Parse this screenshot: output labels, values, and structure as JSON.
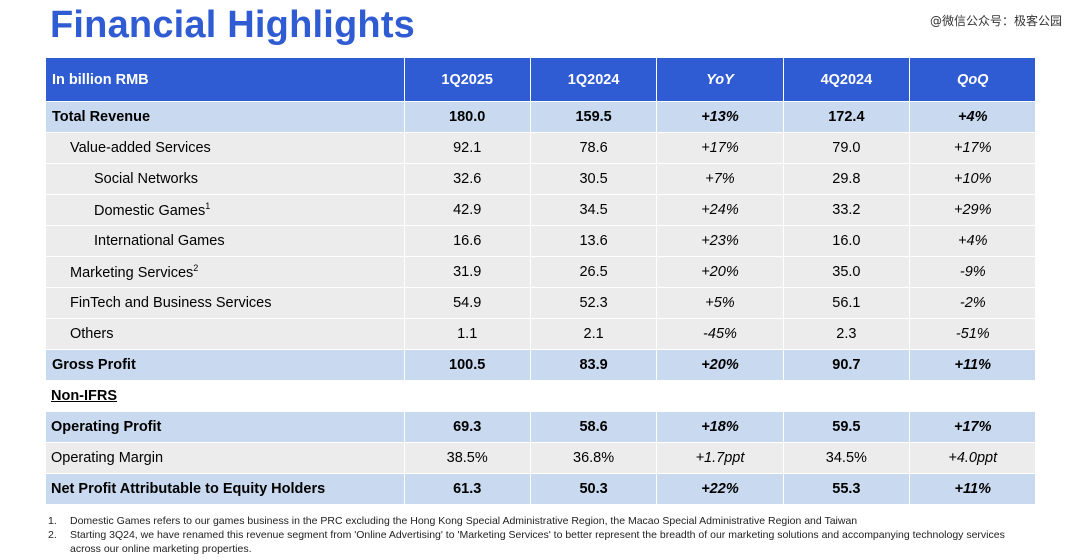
{
  "title": "Financial Highlights",
  "watermark": "@微信公众号：极客公园",
  "table": {
    "headers": [
      "In billion RMB",
      "1Q2025",
      "1Q2024",
      "YoY",
      "4Q2024",
      "QoQ"
    ],
    "rows": [
      {
        "label": "Total Revenue",
        "sup": "",
        "q1_2025": "180.0",
        "q1_2024": "159.5",
        "yoy": "+13%",
        "q4_2024": "172.4",
        "qoq": "+4%"
      },
      {
        "label": "Value-added Services",
        "sup": "",
        "q1_2025": "92.1",
        "q1_2024": "78.6",
        "yoy": "+17%",
        "q4_2024": "79.0",
        "qoq": "+17%"
      },
      {
        "label": "Social Networks",
        "sup": "",
        "q1_2025": "32.6",
        "q1_2024": "30.5",
        "yoy": "+7%",
        "q4_2024": "29.8",
        "qoq": "+10%"
      },
      {
        "label": "Domestic Games",
        "sup": "1",
        "q1_2025": "42.9",
        "q1_2024": "34.5",
        "yoy": "+24%",
        "q4_2024": "33.2",
        "qoq": "+29%"
      },
      {
        "label": "International Games",
        "sup": "",
        "q1_2025": "16.6",
        "q1_2024": "13.6",
        "yoy": "+23%",
        "q4_2024": "16.0",
        "qoq": "+4%"
      },
      {
        "label": "Marketing Services",
        "sup": "2",
        "q1_2025": "31.9",
        "q1_2024": "26.5",
        "yoy": "+20%",
        "q4_2024": "35.0",
        "qoq": "-9%"
      },
      {
        "label": "FinTech and Business Services",
        "sup": "",
        "q1_2025": "54.9",
        "q1_2024": "52.3",
        "yoy": "+5%",
        "q4_2024": "56.1",
        "qoq": "-2%"
      },
      {
        "label": "Others",
        "sup": "",
        "q1_2025": "1.1",
        "q1_2024": "2.1",
        "yoy": "-45%",
        "q4_2024": "2.3",
        "qoq": "-51%"
      },
      {
        "label": "Gross Profit",
        "sup": "",
        "q1_2025": "100.5",
        "q1_2024": "83.9",
        "yoy": "+20%",
        "q4_2024": "90.7",
        "qoq": "+11%"
      }
    ],
    "section_label": "Non-IFRS",
    "non_ifrs_rows": [
      {
        "label": "Operating Profit",
        "q1_2025": "69.3",
        "q1_2024": "58.6",
        "yoy": "+18%",
        "q4_2024": "59.5",
        "qoq": "+17%"
      },
      {
        "label": "Operating Margin",
        "q1_2025": "38.5%",
        "q1_2024": "36.8%",
        "yoy": "+1.7ppt",
        "q4_2024": "34.5%",
        "qoq": "+4.0ppt"
      },
      {
        "label": "Net Profit Attributable to Equity Holders",
        "q1_2025": "61.3",
        "q1_2024": "50.3",
        "yoy": "+22%",
        "q4_2024": "55.3",
        "qoq": "+11%"
      }
    ]
  },
  "footnotes": [
    {
      "num": "1.",
      "text": "Domestic Games refers to our games business in the PRC excluding the Hong Kong Special Administrative Region, the Macao Special Administrative Region and Taiwan"
    },
    {
      "num": "2.",
      "text": "Starting 3Q24, we have renamed this revenue segment from 'Online Advertising' to 'Marketing Services' to better represent the breadth of our marketing solutions and accompanying technology services across our online marketing properties."
    }
  ],
  "colors": {
    "title": "#2f5bd3",
    "header_bg": "#2f5bd3",
    "highlight_row": "#c9daf0",
    "normal_row": "#ececec"
  }
}
